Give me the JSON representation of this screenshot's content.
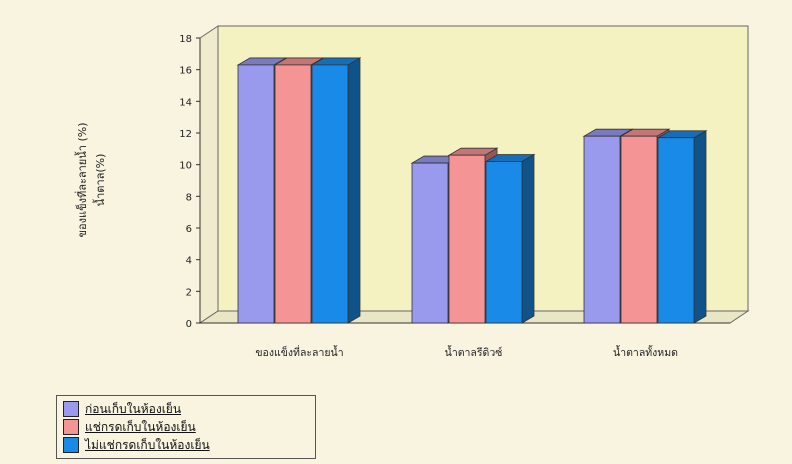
{
  "chart_data": {
    "type": "bar",
    "ylabel": "ของแข็งที่ละลายน้ำ (%)\nน้ำตาล(%)",
    "ylim": [
      0,
      18
    ],
    "yticks": [
      0,
      2,
      4,
      6,
      8,
      10,
      12,
      14,
      16,
      18
    ],
    "categories": [
      "ของแข็งที่ละลายน้ำ",
      "น้ำตาลรีดิวซ์",
      "น้ำตาลทั้งหมด"
    ],
    "series": [
      {
        "name": "ก่อนเก็บในห้องเย็น",
        "color": "#9999ee",
        "values": [
          16.3,
          10.1,
          11.8
        ]
      },
      {
        "name": "แช่กรดเก็บในห้องเย็น",
        "color": "#f59494",
        "values": [
          16.3,
          10.6,
          11.8
        ]
      },
      {
        "name": "ไม่แช่กรดเก็บในห้องเย็น",
        "color": "#1a8ae8",
        "values": [
          16.3,
          10.2,
          11.7
        ]
      }
    ],
    "legend_position": "bottom-left",
    "grid": false,
    "style": "3d"
  }
}
